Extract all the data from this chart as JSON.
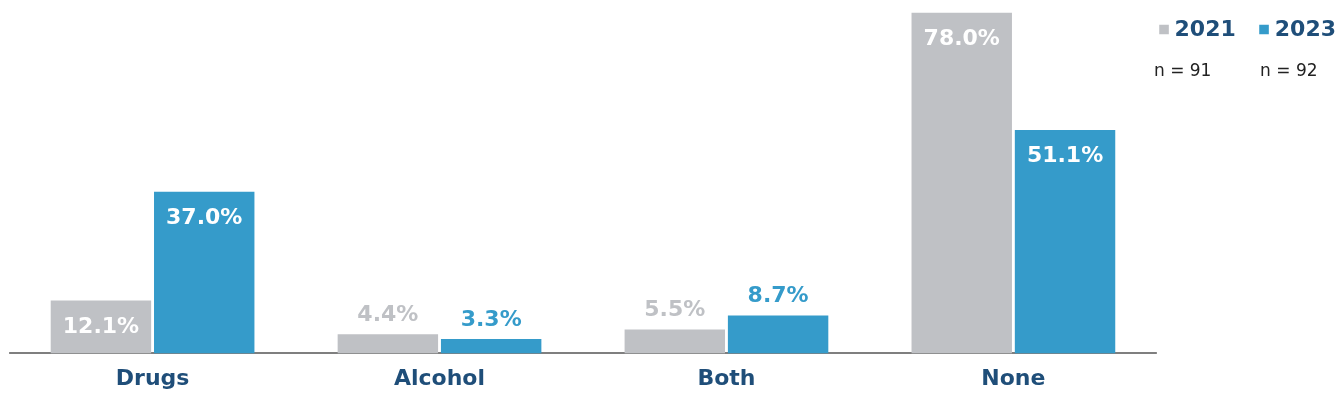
{
  "chart_data": {
    "type": "bar",
    "categories": [
      "Drugs",
      "Alcohol",
      "Both",
      "None"
    ],
    "series": [
      {
        "name": "2021",
        "color": "#bfc1c5",
        "values": [
          12.1,
          4.4,
          5.5,
          78.0
        ],
        "value_labels": [
          "12.1%",
          "4.4%",
          "5.5%",
          "78.0%"
        ]
      },
      {
        "name": "2023",
        "color": "#359bca",
        "values": [
          37.0,
          3.3,
          8.7,
          51.1
        ],
        "value_labels": [
          "37.0%",
          "3.3%",
          "8.7%",
          "51.1%"
        ]
      }
    ],
    "annotations": [
      "n = 91",
      "n = 92"
    ],
    "legend": "top right"
  }
}
